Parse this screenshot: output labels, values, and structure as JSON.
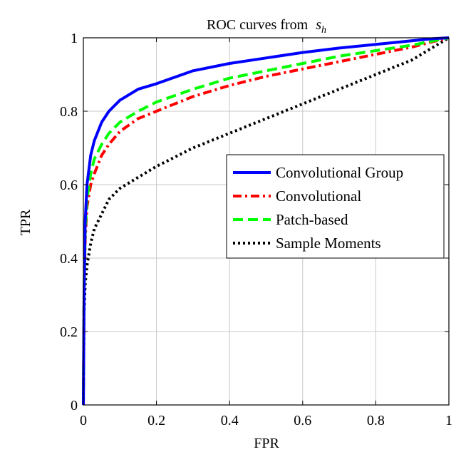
{
  "chart_data": {
    "type": "line",
    "title": "ROC curves from",
    "title_math": "s",
    "title_math_sub": "h",
    "xlabel": "FPR",
    "ylabel": "TPR",
    "xlim": [
      0,
      1
    ],
    "ylim": [
      0,
      1
    ],
    "xticks": [
      0,
      0.2,
      0.4,
      0.6,
      0.8,
      1
    ],
    "yticks": [
      0,
      0.2,
      0.4,
      0.6,
      0.8,
      1
    ],
    "xtick_labels": [
      "0",
      "0.2",
      "0.4",
      "0.6",
      "0.8",
      "1"
    ],
    "ytick_labels": [
      "0",
      "0.2",
      "0.4",
      "0.6",
      "0.8",
      "1"
    ],
    "grid": true,
    "legend_position": "center-right",
    "series": [
      {
        "name": "Convolutional Group",
        "color": "#0000ff",
        "dash": "solid",
        "x": [
          0,
          0.002,
          0.005,
          0.01,
          0.02,
          0.03,
          0.05,
          0.07,
          0.1,
          0.15,
          0.2,
          0.3,
          0.4,
          0.5,
          0.6,
          0.7,
          0.8,
          0.9,
          0.95,
          1
        ],
        "y": [
          0,
          0.3,
          0.5,
          0.6,
          0.68,
          0.72,
          0.77,
          0.8,
          0.83,
          0.86,
          0.875,
          0.91,
          0.93,
          0.945,
          0.96,
          0.972,
          0.982,
          0.992,
          0.997,
          1
        ]
      },
      {
        "name": "Convolutional",
        "color": "#ff0000",
        "dash": "dashdot",
        "x": [
          0,
          0.002,
          0.005,
          0.01,
          0.02,
          0.03,
          0.05,
          0.07,
          0.1,
          0.15,
          0.2,
          0.3,
          0.4,
          0.5,
          0.6,
          0.7,
          0.8,
          0.9,
          0.95,
          1
        ],
        "y": [
          0,
          0.3,
          0.45,
          0.54,
          0.6,
          0.63,
          0.68,
          0.71,
          0.745,
          0.78,
          0.8,
          0.84,
          0.87,
          0.895,
          0.915,
          0.935,
          0.955,
          0.975,
          0.988,
          1
        ]
      },
      {
        "name": "Patch-based",
        "color": "#00ff00",
        "dash": "dashed",
        "x": [
          0,
          0.002,
          0.005,
          0.01,
          0.02,
          0.03,
          0.05,
          0.07,
          0.1,
          0.15,
          0.2,
          0.3,
          0.4,
          0.5,
          0.6,
          0.7,
          0.8,
          0.9,
          0.95,
          1
        ],
        "y": [
          0,
          0.3,
          0.47,
          0.56,
          0.63,
          0.67,
          0.71,
          0.74,
          0.77,
          0.8,
          0.825,
          0.86,
          0.89,
          0.91,
          0.93,
          0.95,
          0.965,
          0.98,
          0.99,
          1
        ]
      },
      {
        "name": "Sample Moments",
        "color": "#000000",
        "dash": "dotted",
        "x": [
          0,
          0.002,
          0.005,
          0.01,
          0.02,
          0.03,
          0.05,
          0.07,
          0.1,
          0.15,
          0.2,
          0.3,
          0.4,
          0.5,
          0.6,
          0.7,
          0.8,
          0.9,
          0.95,
          1
        ],
        "y": [
          0,
          0.25,
          0.33,
          0.38,
          0.44,
          0.48,
          0.52,
          0.56,
          0.59,
          0.62,
          0.65,
          0.7,
          0.74,
          0.78,
          0.82,
          0.86,
          0.9,
          0.94,
          0.97,
          1
        ]
      }
    ]
  }
}
